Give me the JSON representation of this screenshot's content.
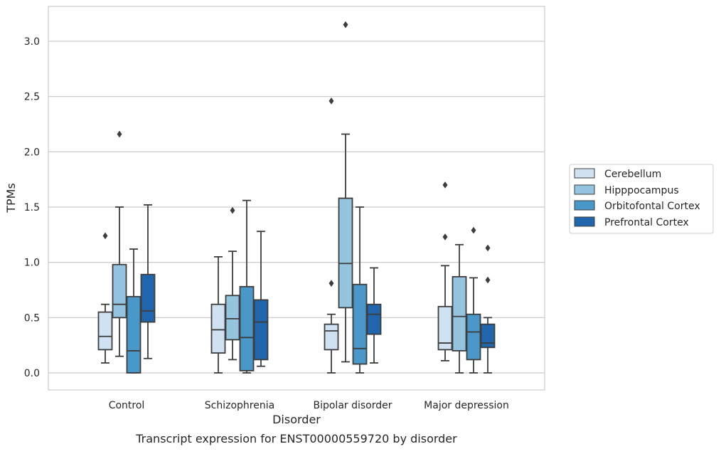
{
  "chart_data": {
    "type": "box",
    "caption": "Transcript expression for ENST00000559720 by disorder",
    "xlabel": "Disorder",
    "ylabel": "TPMs",
    "ylim": [
      -0.15,
      3.3
    ],
    "yticks": [
      "0.0",
      "0.5",
      "1.0",
      "1.5",
      "2.0",
      "2.5",
      "3.0"
    ],
    "ytick_values": [
      0.0,
      0.5,
      1.0,
      1.5,
      2.0,
      2.5,
      3.0
    ],
    "grid": true,
    "legend_position": "right",
    "categories": [
      "Control",
      "Schizophrenia",
      "Bipolar disorder",
      "Major depression"
    ],
    "series": [
      {
        "name": "Cerebellum",
        "color": "#d0e1f2",
        "boxes": [
          {
            "whisker_low": 0.09,
            "q1": 0.21,
            "median": 0.33,
            "q3": 0.55,
            "whisker_high": 0.62,
            "outliers": [
              1.24
            ]
          },
          {
            "whisker_low": 0.0,
            "q1": 0.18,
            "median": 0.39,
            "q3": 0.62,
            "whisker_high": 1.05,
            "outliers": []
          },
          {
            "whisker_low": 0.0,
            "q1": 0.21,
            "median": 0.38,
            "q3": 0.44,
            "whisker_high": 0.53,
            "outliers": [
              0.81,
              2.46
            ]
          },
          {
            "whisker_low": 0.11,
            "q1": 0.21,
            "median": 0.27,
            "q3": 0.6,
            "whisker_high": 0.97,
            "outliers": [
              1.23,
              1.7
            ]
          }
        ]
      },
      {
        "name": "Hipppocampus",
        "color": "#94c4df",
        "boxes": [
          {
            "whisker_low": 0.15,
            "q1": 0.5,
            "median": 0.62,
            "q3": 0.98,
            "whisker_high": 1.5,
            "outliers": [
              2.16
            ]
          },
          {
            "whisker_low": 0.12,
            "q1": 0.3,
            "median": 0.49,
            "q3": 0.7,
            "whisker_high": 1.1,
            "outliers": [
              1.47
            ]
          },
          {
            "whisker_low": 0.1,
            "q1": 0.59,
            "median": 0.99,
            "q3": 1.58,
            "whisker_high": 2.16,
            "outliers": [
              3.15
            ]
          },
          {
            "whisker_low": 0.0,
            "q1": 0.2,
            "median": 0.51,
            "q3": 0.87,
            "whisker_high": 1.16,
            "outliers": []
          }
        ]
      },
      {
        "name": "Orbitofontal Cortex",
        "color": "#4a98c9",
        "boxes": [
          {
            "whisker_low": 0.0,
            "q1": 0.0,
            "median": 0.2,
            "q3": 0.69,
            "whisker_high": 1.12,
            "outliers": []
          },
          {
            "whisker_low": 0.0,
            "q1": 0.02,
            "median": 0.32,
            "q3": 0.78,
            "whisker_high": 1.56,
            "outliers": []
          },
          {
            "whisker_low": 0.0,
            "q1": 0.08,
            "median": 0.22,
            "q3": 0.8,
            "whisker_high": 1.5,
            "outliers": []
          },
          {
            "whisker_low": 0.0,
            "q1": 0.12,
            "median": 0.37,
            "q3": 0.53,
            "whisker_high": 0.86,
            "outliers": [
              1.29
            ]
          }
        ]
      },
      {
        "name": "Prefrontal Cortex",
        "color": "#2166ac",
        "boxes": [
          {
            "whisker_low": 0.13,
            "q1": 0.46,
            "median": 0.56,
            "q3": 0.89,
            "whisker_high": 1.52,
            "outliers": []
          },
          {
            "whisker_low": 0.06,
            "q1": 0.12,
            "median": 0.46,
            "q3": 0.66,
            "whisker_high": 1.28,
            "outliers": []
          },
          {
            "whisker_low": 0.09,
            "q1": 0.35,
            "median": 0.53,
            "q3": 0.62,
            "whisker_high": 0.95,
            "outliers": []
          },
          {
            "whisker_low": 0.0,
            "q1": 0.23,
            "median": 0.27,
            "q3": 0.44,
            "whisker_high": 0.5,
            "outliers": [
              0.84,
              1.13
            ]
          }
        ]
      }
    ]
  }
}
